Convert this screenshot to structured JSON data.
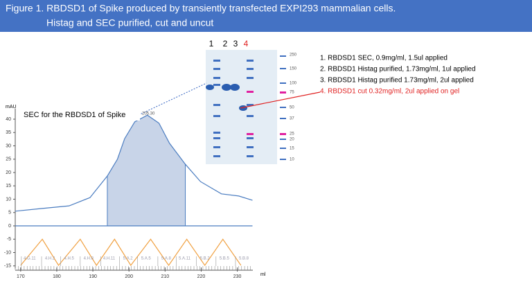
{
  "header": {
    "title_line1": "Figure 1. RBDSD1  of Spike produced  by  transiently transfected EXPI293 mammalian cells.",
    "title_line2": "Histag and SEC purified, cut and uncut"
  },
  "gel": {
    "lanes": [
      "1",
      "2",
      "3",
      "4"
    ],
    "markers": [
      "250",
      "150",
      "100",
      "75",
      "50",
      "37",
      "25",
      "20",
      "15",
      "10"
    ]
  },
  "legend": [
    "1.  RBDSD1  SEC, 0.9mg/ml, 1.5ul applied",
    "2.  RBDSD1  Histag purified, 1.73mg/ml, 1ul applied",
    "3.  RBDSD1  Histag purified 1.73mg/ml, 2ul applied",
    "4.  RBDSD1   cut  0.32mg/ml, 2ul applied on gel"
  ],
  "chart_data": {
    "type": "line",
    "title": "SEC for the RBDSD1 of Spike",
    "peak_label": "205.30",
    "ylabel": "mAU",
    "xlabel": "ml",
    "xlim": [
      168.5,
      234.3
    ],
    "ylim": [
      -16,
      44
    ],
    "xticks": [
      170,
      180,
      190,
      200,
      210,
      220,
      230
    ],
    "yticks": [
      -15,
      -10,
      -5,
      0,
      5,
      10,
      15,
      20,
      25,
      30,
      35,
      40
    ],
    "series": [
      {
        "color": "#4a7cc0",
        "x": [
          168.5,
          175.7,
          183.4,
          189.2,
          194,
          196.8,
          198.8,
          201.6,
          205.1,
          208.3,
          211.2,
          215.6,
          219.8,
          225.6,
          230.4,
          234.2
        ],
        "values": [
          5.5,
          6.5,
          7.5,
          10.6,
          18.7,
          25,
          32.7,
          39,
          41.5,
          38.5,
          31,
          23.1,
          16.6,
          12,
          11.2,
          9.6
        ]
      },
      {
        "color": "#4a7cc0",
        "x": [
          168.5,
          234.2
        ],
        "values": [
          0,
          0
        ]
      },
      {
        "color": "#f0a040",
        "x": [
          170,
          176,
          180.5,
          186.5,
          191,
          196,
          200.5,
          206,
          211,
          216,
          221,
          226,
          231
        ],
        "values": [
          -14.8,
          -5,
          -14.8,
          -5,
          -14.8,
          -5,
          -14.8,
          -5,
          -14.8,
          -5,
          -14.8,
          -5,
          -14.8
        ]
      }
    ],
    "highlight": {
      "xlim": [
        194,
        215.6
      ],
      "color": "#c8d4e8"
    },
    "fractions": [
      {
        "x": 172.5,
        "label": "4.G.11"
      },
      {
        "x": 178.1,
        "label": "4.H.2"
      },
      {
        "x": 183.4,
        "label": "4.H.5"
      },
      {
        "x": 188.8,
        "label": "4.H.8"
      },
      {
        "x": 194.5,
        "label": "4.H.11"
      },
      {
        "x": 199.7,
        "label": "5.A.2"
      },
      {
        "x": 204.7,
        "label": "5.A.5"
      },
      {
        "x": 210.3,
        "label": "5.A.8"
      },
      {
        "x": 215.4,
        "label": "5.A.11"
      },
      {
        "x": 221,
        "label": "5.B.2"
      },
      {
        "x": 226.4,
        "label": "5.B.5"
      },
      {
        "x": 231.8,
        "label": "5.B.8"
      }
    ]
  }
}
